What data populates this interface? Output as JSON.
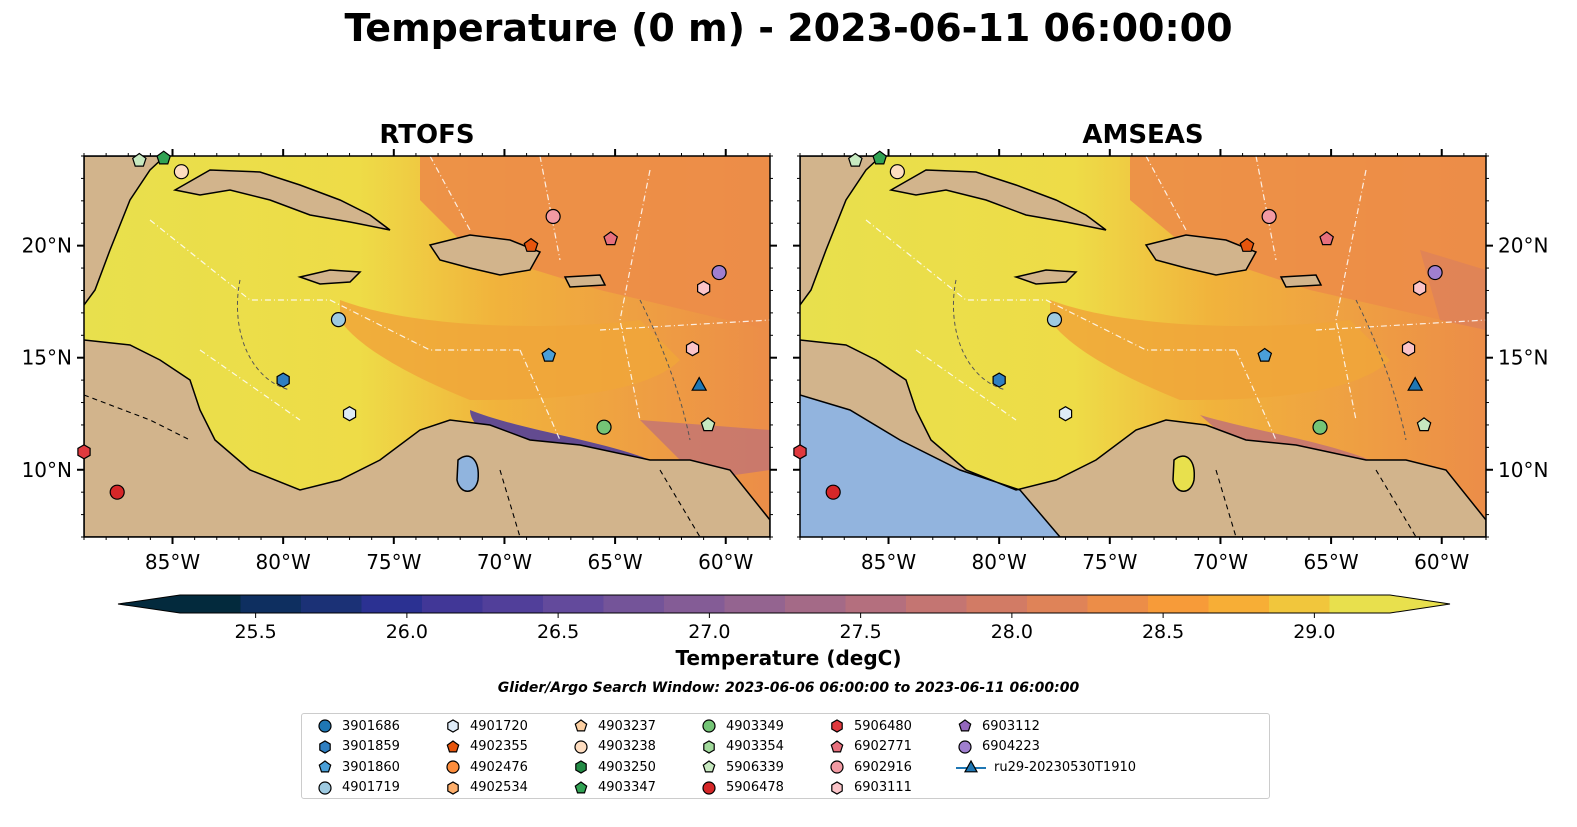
{
  "title": "Temperature (0 m) - 2023-06-11 06:00:00",
  "panels": [
    {
      "title": "RTOFS"
    },
    {
      "title": "AMSEAS"
    }
  ],
  "axes": {
    "lon_ticks": [
      "85°W",
      "80°W",
      "75°W",
      "70°W",
      "65°W",
      "60°W"
    ],
    "lat_ticks": [
      "20°N",
      "15°N",
      "10°N"
    ],
    "lon_range": [
      -89,
      -58
    ],
    "lat_range": [
      7,
      24
    ]
  },
  "colorbar": {
    "label": "Temperature (degC)",
    "ticks": [
      "25.5",
      "26.0",
      "26.5",
      "27.0",
      "27.5",
      "28.0",
      "28.5",
      "29.0"
    ],
    "min": 25.25,
    "max": 29.25,
    "extend": "both",
    "colors": [
      "#032a3d",
      "#0e2f60",
      "#1b3176",
      "#2b3192",
      "#413797",
      "#513f9a",
      "#634a9c",
      "#745499",
      "#845c96",
      "#946490",
      "#a46a87",
      "#b46f7e",
      "#c47572",
      "#d27b65",
      "#df8358",
      "#ec8d48",
      "#f79b39",
      "#f7ae36",
      "#f1c63c",
      "#e8e04d"
    ]
  },
  "search_window": "Glider/Argo Search Window: 2023-06-06 06:00:00 to 2023-06-11 06:00:00",
  "legend": [
    {
      "label": "3901686",
      "marker": "circle",
      "color": "#1f77b4"
    },
    {
      "label": "3901859",
      "marker": "hexagon",
      "color": "#2f7fc1"
    },
    {
      "label": "3901860",
      "marker": "pentagon",
      "color": "#4a9fd8"
    },
    {
      "label": "4901719",
      "marker": "circle",
      "color": "#9ecae1"
    },
    {
      "label": "4901720",
      "marker": "hexagon",
      "color": "#deebf7"
    },
    {
      "label": "4902355",
      "marker": "pentagon",
      "color": "#e6550d"
    },
    {
      "label": "4902476",
      "marker": "circle",
      "color": "#fd8d3c"
    },
    {
      "label": "4902534",
      "marker": "hexagon",
      "color": "#fdae6b"
    },
    {
      "label": "4903237",
      "marker": "pentagon",
      "color": "#fdd0a2"
    },
    {
      "label": "4903238",
      "marker": "circle",
      "color": "#feddc0"
    },
    {
      "label": "4903250",
      "marker": "hexagon",
      "color": "#238b45"
    },
    {
      "label": "4903347",
      "marker": "pentagon",
      "color": "#31a354"
    },
    {
      "label": "4903349",
      "marker": "circle",
      "color": "#74c476"
    },
    {
      "label": "4903354",
      "marker": "hexagon",
      "color": "#a1d99b"
    },
    {
      "label": "5906339",
      "marker": "pentagon",
      "color": "#c7e9c0"
    },
    {
      "label": "5906478",
      "marker": "circle",
      "color": "#d62728"
    },
    {
      "label": "5906480",
      "marker": "hexagon",
      "color": "#e0393e"
    },
    {
      "label": "6902771",
      "marker": "pentagon",
      "color": "#e7707d"
    },
    {
      "label": "6902916",
      "marker": "circle",
      "color": "#f29aa3"
    },
    {
      "label": "6903111",
      "marker": "hexagon",
      "color": "#fbc4c8"
    },
    {
      "label": "6903112",
      "marker": "pentagon",
      "color": "#9467bd"
    },
    {
      "label": "6904223",
      "marker": "circle",
      "color": "#a07fcf"
    },
    {
      "label": "ru29-20230530T1910",
      "marker": "triangle-line",
      "color": "#1f77b4"
    }
  ],
  "platforms": [
    {
      "id": "3901860",
      "lon": -68,
      "lat": 15.1
    },
    {
      "id": "3901859",
      "lon": -80,
      "lat": 14.0
    },
    {
      "id": "4901719",
      "lon": -77.5,
      "lat": 16.7
    },
    {
      "id": "4901720",
      "lon": -77,
      "lat": 12.5
    },
    {
      "id": "4902355",
      "lon": -68.8,
      "lat": 20.0
    },
    {
      "id": "6902771",
      "lon": -65.2,
      "lat": 20.3
    },
    {
      "id": "6902916",
      "lon": -67.8,
      "lat": 21.3
    },
    {
      "id": "6904223",
      "lon": -60.3,
      "lat": 18.8
    },
    {
      "id": "6903111",
      "lon": -61.0,
      "lat": 18.1
    },
    {
      "id": "6903111",
      "lon": -61.5,
      "lat": 15.4
    },
    {
      "id": "4903349",
      "lon": -65.5,
      "lat": 11.9
    },
    {
      "id": "5906339",
      "lon": -60.8,
      "lat": 12.0
    },
    {
      "id": "5906478",
      "lon": -87.5,
      "lat": 9.0
    },
    {
      "id": "5906480",
      "lon": -89,
      "lat": 10.8
    },
    {
      "id": "4903238",
      "lon": -84.6,
      "lat": 23.3
    },
    {
      "id": "5906339",
      "lon": -86.5,
      "lat": 23.8
    },
    {
      "id": "4903347",
      "lon": -85.4,
      "lat": 23.9
    },
    {
      "id": "ru29-20230530T1910",
      "lon": -61.2,
      "lat": 13.8
    }
  ]
}
